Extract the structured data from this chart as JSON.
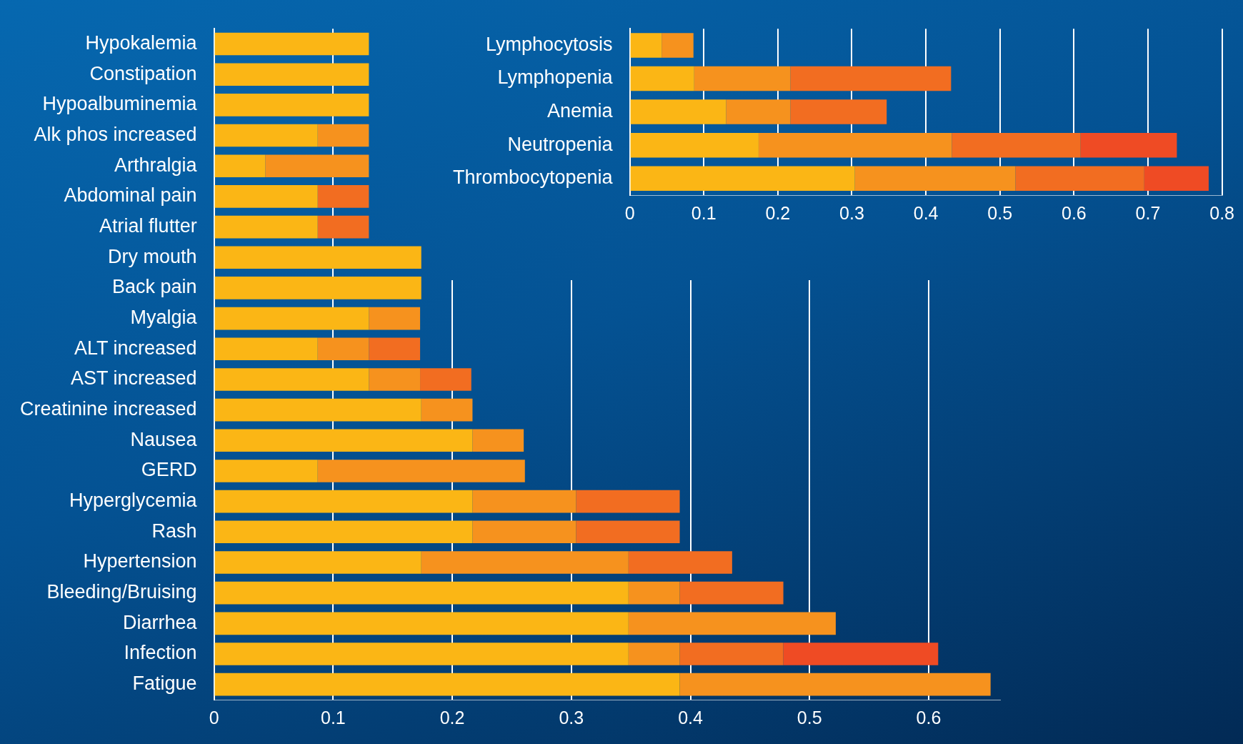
{
  "chart_data": [
    {
      "type": "bar",
      "orientation": "horizontal",
      "stacked": true,
      "grid": "x",
      "legend": false,
      "categories": [
        "Hypokalemia",
        "Constipation",
        "Hypoalbuminemia",
        "Alk phos increased",
        "Arthralgia",
        "Abdominal pain",
        "Atrial flutter",
        "Dry mouth",
        "Back pain",
        "Myalgia",
        "ALT increased",
        "AST increased",
        "Creatinine increased",
        "Nausea",
        "GERD",
        "Hyperglycemia",
        "Rash",
        "Hypertension",
        "Bleeding/Bruising",
        "Diarrhea",
        "Infection",
        "Fatigue"
      ],
      "series": [
        {
          "color": "#fbb615",
          "values": [
            0.13,
            0.13,
            0.13,
            0.087,
            0.043,
            0.087,
            0.087,
            0.174,
            0.174,
            0.13,
            0.087,
            0.13,
            0.174,
            0.217,
            0.087,
            0.217,
            0.217,
            0.174,
            0.348,
            0.348,
            0.348,
            0.391
          ]
        },
        {
          "color": "#f6921e",
          "values": [
            0,
            0,
            0,
            0.043,
            0.087,
            0,
            0,
            0,
            0,
            0.043,
            0.043,
            0.043,
            0.043,
            0.043,
            0.174,
            0.087,
            0.087,
            0.174,
            0.043,
            0.174,
            0.043,
            0.261
          ]
        },
        {
          "color": "#f26d21",
          "values": [
            0,
            0,
            0,
            0,
            0,
            0.043,
            0.043,
            0,
            0,
            0,
            0.043,
            0.043,
            0,
            0,
            0,
            0.087,
            0.087,
            0.087,
            0.087,
            0,
            0.087,
            0
          ]
        },
        {
          "color": "#ef4b24",
          "values": [
            0,
            0,
            0,
            0,
            0,
            0,
            0,
            0,
            0,
            0,
            0,
            0,
            0,
            0,
            0,
            0,
            0,
            0,
            0,
            0,
            0.13,
            0
          ]
        }
      ],
      "xlim": [
        0,
        0.66
      ],
      "xticks": [
        0,
        0.1,
        0.2,
        0.3,
        0.4,
        0.5,
        0.6
      ]
    },
    {
      "type": "bar",
      "orientation": "horizontal",
      "stacked": true,
      "grid": "x",
      "legend": false,
      "categories": [
        "Lymphocytosis",
        "Lymphopenia",
        "Anemia",
        "Neutropenia",
        "Thrombocytopenia"
      ],
      "series": [
        {
          "color": "#fbb615",
          "values": [
            0.043,
            0.087,
            0.13,
            0.174,
            0.304
          ]
        },
        {
          "color": "#f6921e",
          "values": [
            0.043,
            0.13,
            0.087,
            0.261,
            0.217
          ]
        },
        {
          "color": "#f26d21",
          "values": [
            0,
            0.217,
            0.13,
            0.174,
            0.174
          ]
        },
        {
          "color": "#ef4b24",
          "values": [
            0,
            0,
            0,
            0.13,
            0.087
          ]
        }
      ],
      "xlim": [
        0,
        0.8
      ],
      "xticks": [
        0,
        0.1,
        0.2,
        0.3,
        0.4,
        0.5,
        0.6,
        0.7,
        0.8
      ]
    }
  ]
}
